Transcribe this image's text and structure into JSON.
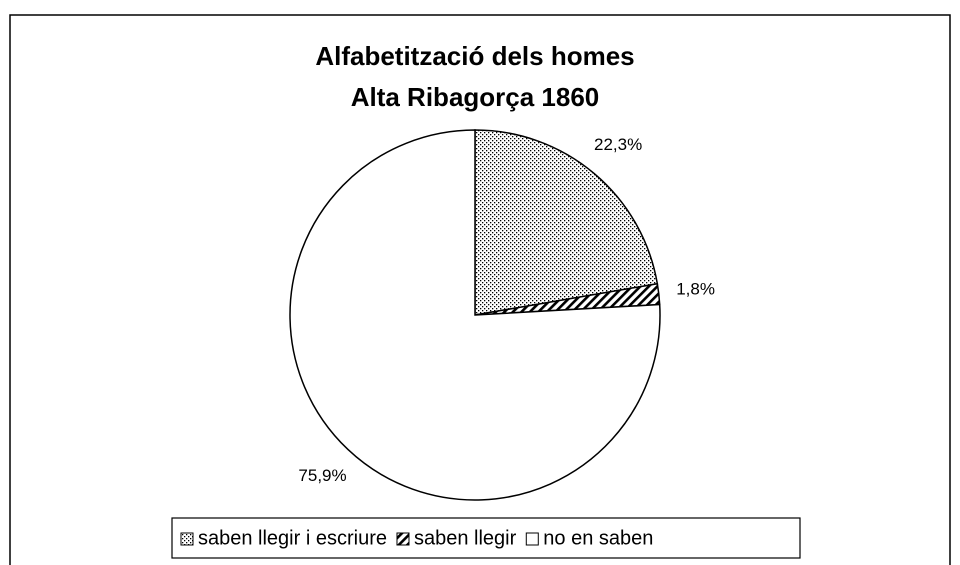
{
  "chart_data": {
    "type": "pie",
    "title": [
      "Alfabetització dels  homes",
      "Alta Ribagorça 1860"
    ],
    "categories": [
      "saben llegir i escriure",
      "saben llegir",
      "no en saben"
    ],
    "values": [
      22.3,
      1.8,
      75.9
    ],
    "value_labels": [
      "22,3%",
      "1,8%",
      "75,9%"
    ],
    "legend": "bottom"
  }
}
